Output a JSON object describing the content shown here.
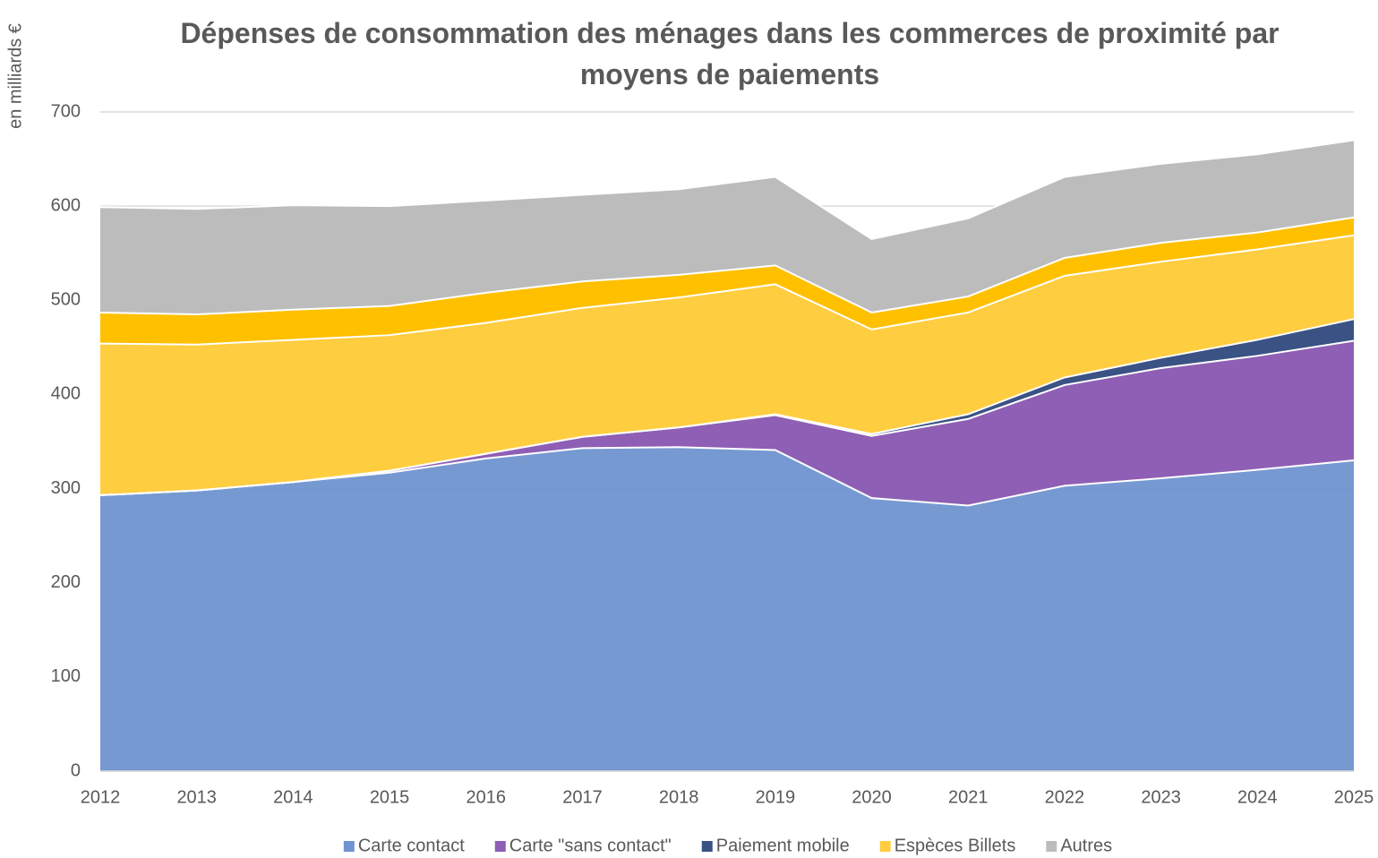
{
  "chart_data": {
    "type": "stacked_area",
    "title": "Dépenses de consommation des ménages dans les commerces de proximité par moyens de paiements",
    "y_label": "en milliards €",
    "x": [
      2012,
      2013,
      2014,
      2015,
      2016,
      2017,
      2018,
      2019,
      2020,
      2021,
      2022,
      2023,
      2024,
      2025
    ],
    "xlim": [
      2012,
      2025
    ],
    "xticks": [
      2012,
      2013,
      2014,
      2015,
      2016,
      2017,
      2018,
      2019,
      2020,
      2021,
      2022,
      2023,
      2024,
      2025
    ],
    "ylim": [
      0,
      700
    ],
    "yticks": [
      0,
      100,
      200,
      300,
      400,
      500,
      600,
      700
    ],
    "grid": true,
    "legend": "bottom",
    "series": [
      {
        "name": "Carte contact",
        "color": "#7094d0",
        "values": [
          293,
          298,
          307,
          317,
          332,
          343,
          344,
          341,
          290,
          282,
          303,
          311,
          320,
          330
        ]
      },
      {
        "name": "Carte \"sans contact\"",
        "color": "#8e5fb4",
        "values": [
          0,
          0,
          0,
          2,
          5,
          12,
          21,
          37,
          66,
          92,
          107,
          117,
          121,
          127
        ]
      },
      {
        "name": "Paiement mobile",
        "color": "#3b5284",
        "values": [
          0,
          0,
          0,
          0,
          0,
          0,
          0,
          1,
          2,
          5,
          8,
          11,
          17,
          23
        ]
      },
      {
        "name": "Espèces Billets",
        "color": "#ffcd40",
        "values": [
          161,
          155,
          151,
          144,
          139,
          137,
          138,
          138,
          111,
          108,
          108,
          102,
          96,
          89
        ]
      },
      {
        "color": "#ffc000",
        "values": [
          33,
          32,
          32,
          31,
          32,
          28,
          24,
          20,
          18,
          17,
          19,
          20,
          18,
          19
        ]
      },
      {
        "name": "Autres",
        "color": "#bcbcbc",
        "values": [
          112,
          112,
          111,
          106,
          98,
          92,
          91,
          94,
          78,
          83,
          86,
          84,
          83,
          82
        ]
      }
    ]
  }
}
